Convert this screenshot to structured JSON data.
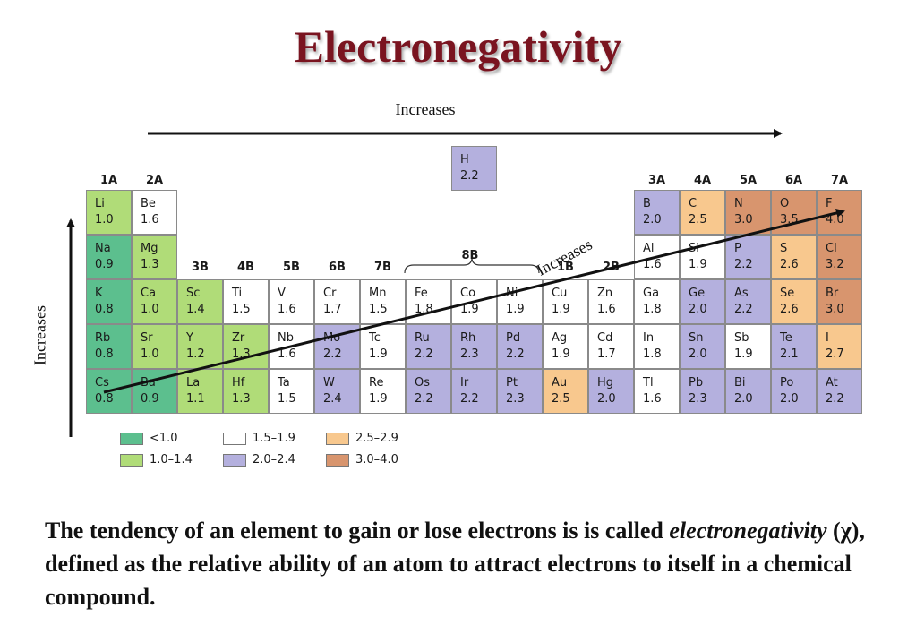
{
  "slide": {
    "title": "Electronegativity",
    "increases_top": "Increases",
    "increases_left": "Increases",
    "increases_diagonal": "Increases"
  },
  "groups": [
    {
      "label": "1A",
      "col": 0,
      "row": 0
    },
    {
      "label": "2A",
      "col": 1,
      "row": 0
    },
    {
      "label": "3A",
      "col": 12,
      "row": 0
    },
    {
      "label": "4A",
      "col": 13,
      "row": 0
    },
    {
      "label": "5A",
      "col": 14,
      "row": 0
    },
    {
      "label": "6A",
      "col": 15,
      "row": 0
    },
    {
      "label": "7A",
      "col": 16,
      "row": 0
    },
    {
      "label": "3B",
      "col": 2,
      "row": 2
    },
    {
      "label": "4B",
      "col": 3,
      "row": 2
    },
    {
      "label": "5B",
      "col": 4,
      "row": 2
    },
    {
      "label": "6B",
      "col": 5,
      "row": 2
    },
    {
      "label": "7B",
      "col": 6,
      "row": 2
    },
    {
      "label": "8B",
      "col": 8,
      "row": 1.6
    },
    {
      "label": "1B",
      "col": 10,
      "row": 2
    },
    {
      "label": "2B",
      "col": 11,
      "row": 2
    }
  ],
  "elements": [
    {
      "sym": "H",
      "en": "2.2",
      "col": 8,
      "row": 0
    },
    {
      "sym": "Li",
      "en": "1.0",
      "col": 0,
      "row": 1
    },
    {
      "sym": "Be",
      "en": "1.6",
      "col": 1,
      "row": 1
    },
    {
      "sym": "B",
      "en": "2.0",
      "col": 12,
      "row": 1
    },
    {
      "sym": "C",
      "en": "2.5",
      "col": 13,
      "row": 1
    },
    {
      "sym": "N",
      "en": "3.0",
      "col": 14,
      "row": 1
    },
    {
      "sym": "O",
      "en": "3.5",
      "col": 15,
      "row": 1
    },
    {
      "sym": "F",
      "en": "4.0",
      "col": 16,
      "row": 1
    },
    {
      "sym": "Na",
      "en": "0.9",
      "col": 0,
      "row": 2
    },
    {
      "sym": "Mg",
      "en": "1.3",
      "col": 1,
      "row": 2
    },
    {
      "sym": "Al",
      "en": "1.6",
      "col": 12,
      "row": 2
    },
    {
      "sym": "Si",
      "en": "1.9",
      "col": 13,
      "row": 2
    },
    {
      "sym": "P",
      "en": "2.2",
      "col": 14,
      "row": 2
    },
    {
      "sym": "S",
      "en": "2.6",
      "col": 15,
      "row": 2
    },
    {
      "sym": "Cl",
      "en": "3.2",
      "col": 16,
      "row": 2
    },
    {
      "sym": "K",
      "en": "0.8",
      "col": 0,
      "row": 3
    },
    {
      "sym": "Ca",
      "en": "1.0",
      "col": 1,
      "row": 3
    },
    {
      "sym": "Sc",
      "en": "1.4",
      "col": 2,
      "row": 3
    },
    {
      "sym": "Ti",
      "en": "1.5",
      "col": 3,
      "row": 3
    },
    {
      "sym": "V",
      "en": "1.6",
      "col": 4,
      "row": 3
    },
    {
      "sym": "Cr",
      "en": "1.7",
      "col": 5,
      "row": 3
    },
    {
      "sym": "Mn",
      "en": "1.5",
      "col": 6,
      "row": 3
    },
    {
      "sym": "Fe",
      "en": "1.8",
      "col": 7,
      "row": 3
    },
    {
      "sym": "Co",
      "en": "1.9",
      "col": 8,
      "row": 3
    },
    {
      "sym": "Ni",
      "en": "1.9",
      "col": 9,
      "row": 3
    },
    {
      "sym": "Cu",
      "en": "1.9",
      "col": 10,
      "row": 3
    },
    {
      "sym": "Zn",
      "en": "1.6",
      "col": 11,
      "row": 3
    },
    {
      "sym": "Ga",
      "en": "1.8",
      "col": 12,
      "row": 3
    },
    {
      "sym": "Ge",
      "en": "2.0",
      "col": 13,
      "row": 3
    },
    {
      "sym": "As",
      "en": "2.2",
      "col": 14,
      "row": 3
    },
    {
      "sym": "Se",
      "en": "2.6",
      "col": 15,
      "row": 3
    },
    {
      "sym": "Br",
      "en": "3.0",
      "col": 16,
      "row": 3
    },
    {
      "sym": "Rb",
      "en": "0.8",
      "col": 0,
      "row": 4
    },
    {
      "sym": "Sr",
      "en": "1.0",
      "col": 1,
      "row": 4
    },
    {
      "sym": "Y",
      "en": "1.2",
      "col": 2,
      "row": 4
    },
    {
      "sym": "Zr",
      "en": "1.3",
      "col": 3,
      "row": 4
    },
    {
      "sym": "Nb",
      "en": "1.6",
      "col": 4,
      "row": 4
    },
    {
      "sym": "Mo",
      "en": "2.2",
      "col": 5,
      "row": 4
    },
    {
      "sym": "Tc",
      "en": "1.9",
      "col": 6,
      "row": 4
    },
    {
      "sym": "Ru",
      "en": "2.2",
      "col": 7,
      "row": 4
    },
    {
      "sym": "Rh",
      "en": "2.3",
      "col": 8,
      "row": 4
    },
    {
      "sym": "Pd",
      "en": "2.2",
      "col": 9,
      "row": 4
    },
    {
      "sym": "Ag",
      "en": "1.9",
      "col": 10,
      "row": 4
    },
    {
      "sym": "Cd",
      "en": "1.7",
      "col": 11,
      "row": 4
    },
    {
      "sym": "In",
      "en": "1.8",
      "col": 12,
      "row": 4
    },
    {
      "sym": "Sn",
      "en": "2.0",
      "col": 13,
      "row": 4
    },
    {
      "sym": "Sb",
      "en": "1.9",
      "col": 14,
      "row": 4
    },
    {
      "sym": "Te",
      "en": "2.1",
      "col": 15,
      "row": 4
    },
    {
      "sym": "I",
      "en": "2.7",
      "col": 16,
      "row": 4
    },
    {
      "sym": "Cs",
      "en": "0.8",
      "col": 0,
      "row": 5
    },
    {
      "sym": "Ba",
      "en": "0.9",
      "col": 1,
      "row": 5
    },
    {
      "sym": "La",
      "en": "1.1",
      "col": 2,
      "row": 5
    },
    {
      "sym": "Hf",
      "en": "1.3",
      "col": 3,
      "row": 5
    },
    {
      "sym": "Ta",
      "en": "1.5",
      "col": 4,
      "row": 5
    },
    {
      "sym": "W",
      "en": "2.4",
      "col": 5,
      "row": 5
    },
    {
      "sym": "Re",
      "en": "1.9",
      "col": 6,
      "row": 5
    },
    {
      "sym": "Os",
      "en": "2.2",
      "col": 7,
      "row": 5
    },
    {
      "sym": "Ir",
      "en": "2.2",
      "col": 8,
      "row": 5
    },
    {
      "sym": "Pt",
      "en": "2.3",
      "col": 9,
      "row": 5
    },
    {
      "sym": "Au",
      "en": "2.5",
      "col": 10,
      "row": 5
    },
    {
      "sym": "Hg",
      "en": "2.0",
      "col": 11,
      "row": 5
    },
    {
      "sym": "Tl",
      "en": "1.6",
      "col": 12,
      "row": 5
    },
    {
      "sym": "Pb",
      "en": "2.3",
      "col": 13,
      "row": 5
    },
    {
      "sym": "Bi",
      "en": "2.0",
      "col": 14,
      "row": 5
    },
    {
      "sym": "Po",
      "en": "2.0",
      "col": 15,
      "row": 5
    },
    {
      "sym": "At",
      "en": "2.2",
      "col": 16,
      "row": 5
    }
  ],
  "legend": [
    {
      "label": "<1.0",
      "color": "#5cbf8e",
      "min": 0,
      "max": 0.95
    },
    {
      "label": "1.0–1.4",
      "color": "#b0dc78",
      "min": 0.95,
      "max": 1.45
    },
    {
      "label": "1.5–1.9",
      "color": "#ffffff",
      "min": 1.45,
      "max": 1.95
    },
    {
      "label": "2.0–2.4",
      "color": "#b4b0de",
      "min": 1.95,
      "max": 2.45
    },
    {
      "label": "2.5–2.9",
      "color": "#f8c88e",
      "min": 2.45,
      "max": 2.95
    },
    {
      "label": "3.0–4.0",
      "color": "#d8956e",
      "min": 2.95,
      "max": 4.1
    }
  ],
  "description": {
    "part1": "The tendency of an element to gain or lose electrons is is called ",
    "term": "electronegativity",
    "part2": " (χ), defined as the relative ability of an atom to attract electrons to itself in a chemical compound."
  }
}
